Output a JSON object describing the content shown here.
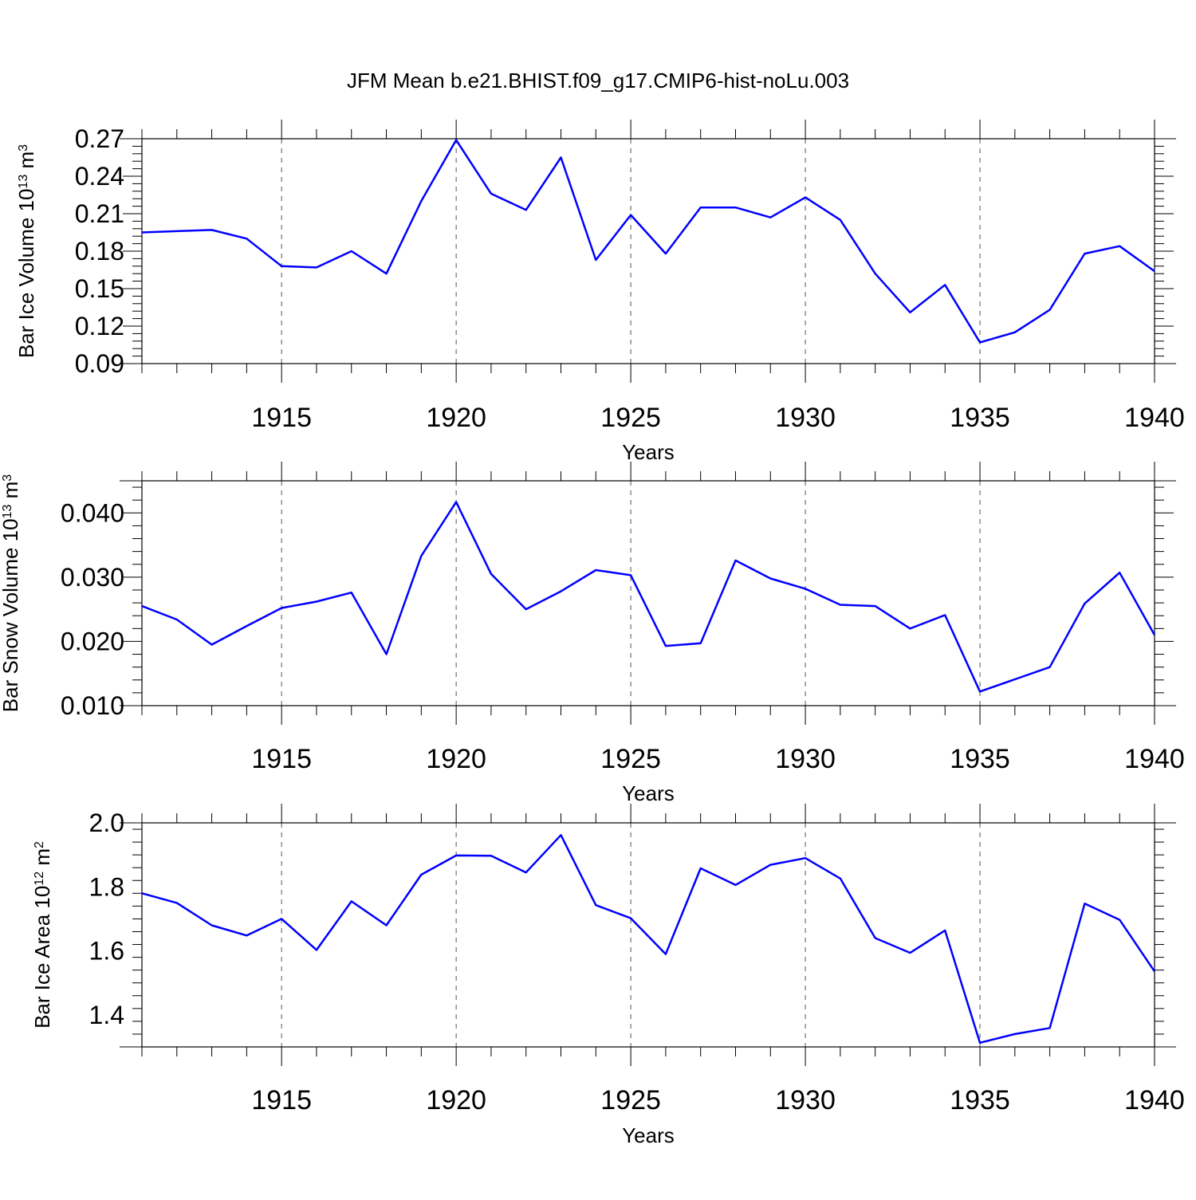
{
  "title": "JFM Mean b.e21.BHIST.f09_g17.CMIP6-hist-noLu.003",
  "colors": {
    "line": "#0000ff",
    "axis": "#000000",
    "grid": "#555555"
  },
  "chart_data": [
    {
      "type": "line",
      "ylabel": "Bar Ice Volume 10",
      "ylabel_exp": "13",
      "ylabel_unit": " m",
      "ylabel_unit_exp": "3",
      "xlabel": "Years",
      "xlim": [
        1911,
        1940
      ],
      "ylim": [
        0.09,
        0.27
      ],
      "xticks": [
        "1915",
        "1920",
        "1925",
        "1930",
        "1935",
        "1940"
      ],
      "yticks": [
        "0.09",
        "0.12",
        "0.15",
        "0.18",
        "0.21",
        "0.24",
        "0.27"
      ],
      "ytick_values": [
        0.09,
        0.12,
        0.15,
        0.18,
        0.21,
        0.24,
        0.27
      ],
      "grid_x": [
        1915,
        1920,
        1925,
        1930,
        1935
      ],
      "x": [
        1911,
        1912,
        1913,
        1914,
        1915,
        1916,
        1917,
        1918,
        1919,
        1920,
        1921,
        1922,
        1923,
        1924,
        1925,
        1926,
        1927,
        1928,
        1929,
        1930,
        1931,
        1932,
        1933,
        1934,
        1935,
        1936,
        1937,
        1938,
        1939,
        1940
      ],
      "y": [
        0.195,
        0.196,
        0.197,
        0.19,
        0.168,
        0.167,
        0.18,
        0.162,
        0.22,
        0.269,
        0.226,
        0.213,
        0.255,
        0.173,
        0.209,
        0.178,
        0.215,
        0.215,
        0.207,
        0.223,
        0.205,
        0.162,
        0.131,
        0.153,
        0.107,
        0.115,
        0.133,
        0.178,
        0.184,
        0.164
      ]
    },
    {
      "type": "line",
      "ylabel": "Bar Snow Volume 10",
      "ylabel_exp": "13",
      "ylabel_unit": " m",
      "ylabel_unit_exp": "3",
      "xlabel": "Years",
      "xlim": [
        1911,
        1940
      ],
      "ylim": [
        0.01,
        0.045
      ],
      "xticks": [
        "1915",
        "1920",
        "1925",
        "1930",
        "1935",
        "1940"
      ],
      "yticks": [
        "0.010",
        "0.020",
        "0.030",
        "0.040"
      ],
      "ytick_values": [
        0.01,
        0.02,
        0.03,
        0.04
      ],
      "grid_x": [
        1915,
        1920,
        1925,
        1930,
        1935
      ],
      "x": [
        1911,
        1912,
        1913,
        1914,
        1915,
        1916,
        1917,
        1918,
        1919,
        1920,
        1921,
        1922,
        1923,
        1924,
        1925,
        1926,
        1927,
        1928,
        1929,
        1930,
        1931,
        1932,
        1933,
        1934,
        1935,
        1936,
        1937,
        1938,
        1939,
        1940
      ],
      "y": [
        0.0255,
        0.0234,
        0.0195,
        0.0224,
        0.0252,
        0.0262,
        0.0276,
        0.018,
        0.0333,
        0.0417,
        0.0305,
        0.025,
        0.0278,
        0.0311,
        0.0303,
        0.0193,
        0.0197,
        0.0326,
        0.0298,
        0.0282,
        0.0257,
        0.0255,
        0.022,
        0.0241,
        0.0122,
        0.0141,
        0.016,
        0.0259,
        0.0307,
        0.021
      ]
    },
    {
      "type": "line",
      "ylabel": "Bar Ice Area 10",
      "ylabel_exp": "12",
      "ylabel_unit": " m",
      "ylabel_unit_exp": "2",
      "xlabel": "Years",
      "xlim": [
        1911,
        1940
      ],
      "ylim": [
        1.3,
        2.0
      ],
      "xticks": [
        "1915",
        "1920",
        "1925",
        "1930",
        "1935",
        "1940"
      ],
      "yticks": [
        "1.4",
        "1.6",
        "1.8",
        "2.0"
      ],
      "ytick_values": [
        1.4,
        1.6,
        1.8,
        2.0
      ],
      "grid_x": [
        1915,
        1920,
        1925,
        1930,
        1935
      ],
      "x": [
        1911,
        1912,
        1913,
        1914,
        1915,
        1916,
        1917,
        1918,
        1919,
        1920,
        1921,
        1922,
        1923,
        1924,
        1925,
        1926,
        1927,
        1928,
        1929,
        1930,
        1931,
        1932,
        1933,
        1934,
        1935,
        1936,
        1937,
        1938,
        1939,
        1940
      ],
      "y": [
        1.78,
        1.75,
        1.68,
        1.648,
        1.7,
        1.603,
        1.755,
        1.68,
        1.838,
        1.898,
        1.897,
        1.845,
        1.962,
        1.743,
        1.702,
        1.59,
        1.858,
        1.806,
        1.869,
        1.89,
        1.826,
        1.64,
        1.594,
        1.664,
        1.313,
        1.34,
        1.359,
        1.748,
        1.697,
        1.536
      ]
    }
  ]
}
